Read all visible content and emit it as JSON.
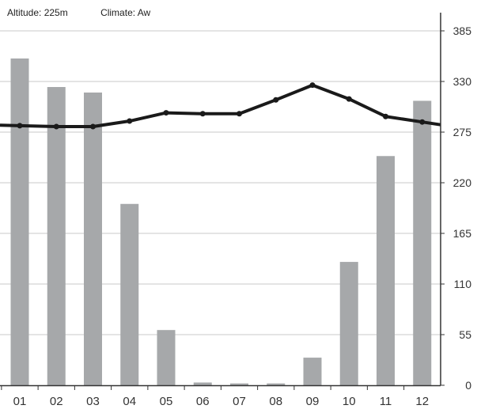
{
  "header": {
    "altitude": "Altitude: 225m",
    "climate": "Climate: Aw"
  },
  "chart_data": {
    "type": "bar",
    "categories": [
      "01",
      "02",
      "03",
      "04",
      "05",
      "06",
      "07",
      "08",
      "09",
      "10",
      "11",
      "12"
    ],
    "series": [
      {
        "kind": "bar",
        "values": [
          355,
          324,
          318,
          197,
          60,
          3,
          2,
          2,
          30,
          134,
          249,
          309
        ],
        "color": "#a6a8aa"
      },
      {
        "kind": "line",
        "values": [
          282,
          281,
          281,
          287,
          296,
          295,
          295,
          310,
          326,
          311,
          292,
          286
        ],
        "color": "#1a1a1a"
      }
    ],
    "yticks": [
      0,
      55,
      110,
      165,
      220,
      275,
      330,
      385
    ],
    "ylim": [
      0,
      400
    ],
    "grid": true,
    "axis_position": "right",
    "line_extends_to_edges": true
  }
}
